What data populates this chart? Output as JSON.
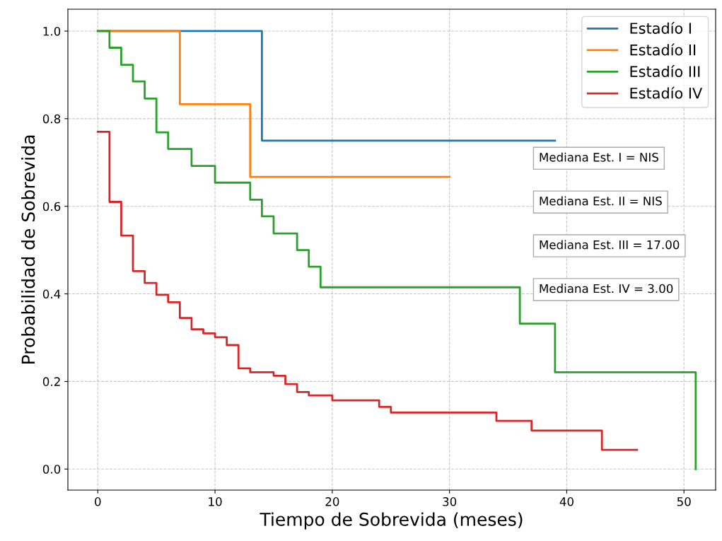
{
  "chart_data": {
    "type": "step",
    "xlabel": "Tiempo de Sobrevida (meses)",
    "ylabel": "Probabilidad de Sobrevida",
    "xlim": [
      -2.55,
      52.7
    ],
    "ylim": [
      -0.048,
      1.05
    ],
    "xticks": [
      0,
      10,
      20,
      30,
      40,
      50
    ],
    "yticks": [
      {
        "value": 0,
        "label": "0.0"
      },
      {
        "value": 0.2,
        "label": "0.2"
      },
      {
        "value": 0.4,
        "label": "0.4"
      },
      {
        "value": 0.6,
        "label": "0.6"
      },
      {
        "value": 0.8,
        "label": "0.8"
      },
      {
        "value": 1,
        "label": "1.0"
      }
    ],
    "grid": true,
    "legend": "top right",
    "line_style": "solid",
    "marker": "none",
    "series": [
      {
        "name": "Estadío I",
        "color": "#1f77b4",
        "x": [
          0,
          14,
          39
        ],
        "values": [
          1.0,
          0.75,
          0.75
        ]
      },
      {
        "name": "Estadío II",
        "color": "#ff7f0e",
        "x": [
          0,
          7,
          13,
          30
        ],
        "values": [
          1.0,
          0.833,
          0.667,
          0.667
        ]
      },
      {
        "name": "Estadío III",
        "color": "#2ca02c",
        "x": [
          0,
          1,
          2,
          3,
          4,
          5,
          6,
          8,
          10,
          13,
          14,
          15,
          17,
          18,
          19,
          36,
          39,
          51
        ],
        "values": [
          1.0,
          0.962,
          0.923,
          0.885,
          0.846,
          0.769,
          0.731,
          0.692,
          0.654,
          0.615,
          0.577,
          0.538,
          0.5,
          0.462,
          0.415,
          0.332,
          0.221,
          0.0
        ]
      },
      {
        "name": "Estadío IV",
        "color": "#d62728",
        "x": [
          0,
          1,
          2,
          3,
          4,
          5,
          6,
          7,
          8,
          9,
          10,
          11,
          12,
          13,
          15,
          16,
          17,
          18,
          20,
          24,
          25,
          34,
          37,
          43,
          46
        ],
        "values": [
          0.77,
          0.61,
          0.533,
          0.452,
          0.425,
          0.398,
          0.381,
          0.345,
          0.319,
          0.31,
          0.301,
          0.283,
          0.23,
          0.221,
          0.213,
          0.194,
          0.176,
          0.168,
          0.157,
          0.142,
          0.129,
          0.11,
          0.088,
          0.044,
          0.044
        ]
      }
    ],
    "annotations": [
      "Mediana Est. I = NIS",
      "Mediana Est. II = NIS",
      "Mediana Est. III = 17.00",
      "Mediana Est. IV = 3.00"
    ]
  }
}
